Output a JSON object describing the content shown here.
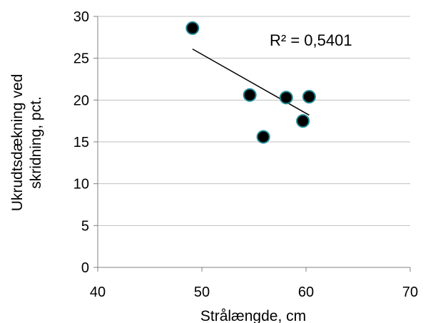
{
  "chart_data": {
    "type": "scatter",
    "title": "",
    "xlabel": "Strålængde, cm",
    "ylabel_lines": [
      "Ukrudtsdækning ved",
      "skridning, pct."
    ],
    "xlim": [
      40,
      70
    ],
    "ylim": [
      0,
      30
    ],
    "xticks": [
      40,
      50,
      60,
      70
    ],
    "yticks": [
      0,
      5,
      10,
      15,
      20,
      25,
      30
    ],
    "grid": "horizontal",
    "legend": "none",
    "points": [
      {
        "x": 49.1,
        "y": 28.6
      },
      {
        "x": 54.6,
        "y": 20.6
      },
      {
        "x": 55.9,
        "y": 15.6
      },
      {
        "x": 58.1,
        "y": 20.3
      },
      {
        "x": 59.7,
        "y": 17.5
      },
      {
        "x": 60.3,
        "y": 20.4
      }
    ],
    "trendline": {
      "x": [
        49.1,
        60.3
      ],
      "y": [
        26.1,
        18.2
      ]
    },
    "annotation": "R² = 0,5401",
    "colors": {
      "marker_fill": "#000000",
      "marker_edge": "#1f8a94",
      "trendline": "#000000",
      "grid": "#bfbfbf",
      "axis": "#808080"
    }
  }
}
